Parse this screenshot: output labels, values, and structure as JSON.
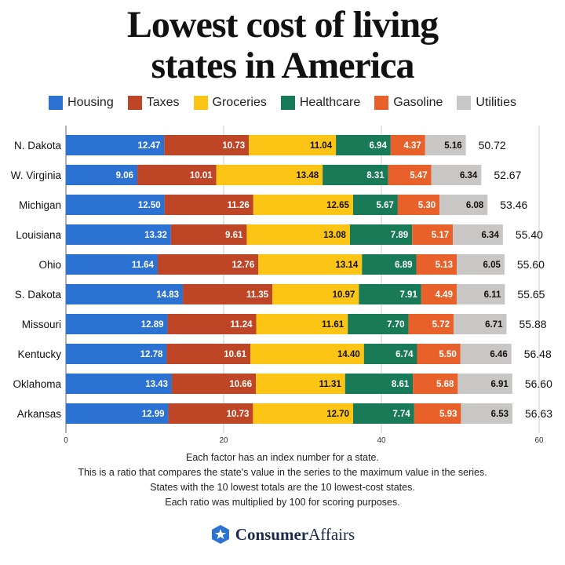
{
  "title_line1": "Lowest cost of living",
  "title_line2": "states in America",
  "chart_data": {
    "type": "bar",
    "orientation": "horizontal",
    "stacked": true,
    "categories": [
      "N. Dakota",
      "W. Virginia",
      "Michigan",
      "Louisiana",
      "Ohio",
      "S. Dakota",
      "Missouri",
      "Kentucky",
      "Oklahoma",
      "Arkansas"
    ],
    "series": [
      {
        "name": "Housing",
        "color": "#2b72d3",
        "values": [
          12.47,
          9.06,
          12.5,
          13.32,
          11.64,
          14.83,
          12.89,
          12.78,
          13.43,
          12.99
        ],
        "labels": [
          "12.47",
          "9.06",
          "12.50",
          "13.32",
          "11.64",
          "14.83",
          "12.89",
          "12.78",
          "13.43",
          "12.99"
        ]
      },
      {
        "name": "Taxes",
        "color": "#bf4527",
        "values": [
          10.73,
          10.01,
          11.26,
          9.61,
          12.76,
          11.35,
          11.24,
          10.61,
          10.66,
          10.73
        ],
        "labels": [
          "10.73",
          "10.01",
          "11.26",
          "9.61",
          "12.76",
          "11.35",
          "11.24",
          "10.61",
          "10.66",
          "10.73"
        ]
      },
      {
        "name": "Groceries",
        "color": "#fcc414",
        "values": [
          11.04,
          13.48,
          12.65,
          13.08,
          13.14,
          10.97,
          11.61,
          14.4,
          11.31,
          12.7
        ],
        "labels": [
          "11.04",
          "13.48",
          "12.65",
          "13.08",
          "13.14",
          "10.97",
          "11.61",
          "14.40",
          "11.31",
          "12.70"
        ]
      },
      {
        "name": "Healthcare",
        "color": "#197a58",
        "values": [
          6.94,
          8.31,
          5.67,
          7.89,
          6.89,
          7.91,
          7.7,
          6.74,
          8.61,
          7.74
        ],
        "labels": [
          "6.94",
          "8.31",
          "5.67",
          "7.89",
          "6.89",
          "7.91",
          "7.70",
          "6.74",
          "8.61",
          "7.74"
        ]
      },
      {
        "name": "Gasoline",
        "color": "#e9612a",
        "values": [
          4.37,
          5.47,
          5.3,
          5.17,
          5.13,
          4.49,
          5.72,
          5.5,
          5.68,
          5.93
        ],
        "labels": [
          "4.37",
          "5.47",
          "5.30",
          "5.17",
          "5.13",
          "4.49",
          "5.72",
          "5.50",
          "5.68",
          "5.93"
        ]
      },
      {
        "name": "Utilities",
        "color": "#c9c7c5",
        "values": [
          5.16,
          6.34,
          6.08,
          6.34,
          6.05,
          6.11,
          6.71,
          6.46,
          6.91,
          6.53
        ],
        "labels": [
          "5.16",
          "6.34",
          "6.08",
          "6.34",
          "6.05",
          "6.11",
          "6.71",
          "6.46",
          "6.91",
          "6.53"
        ]
      }
    ],
    "totals": [
      "50.72",
      "52.67",
      "53.46",
      "55.40",
      "55.60",
      "55.65",
      "55.88",
      "56.48",
      "56.60",
      "56.63"
    ],
    "xlim": [
      0,
      60
    ],
    "xticks": [
      "0",
      "20",
      "40",
      "60"
    ],
    "grid": true,
    "legend": "top"
  },
  "notes": [
    "Each factor has an index number for a state.",
    "This is a ratio that compares the state's value in the series to the maximum value in the series.",
    "States with the 10 lowest totals are the 10 lowest-cost states.",
    "Each ratio was multiplied by 100 for scoring purposes."
  ],
  "brand": {
    "bold": "Consumer",
    "light": "Affairs",
    "icon": "star-hexagon-icon",
    "color": "#2b72d3"
  }
}
